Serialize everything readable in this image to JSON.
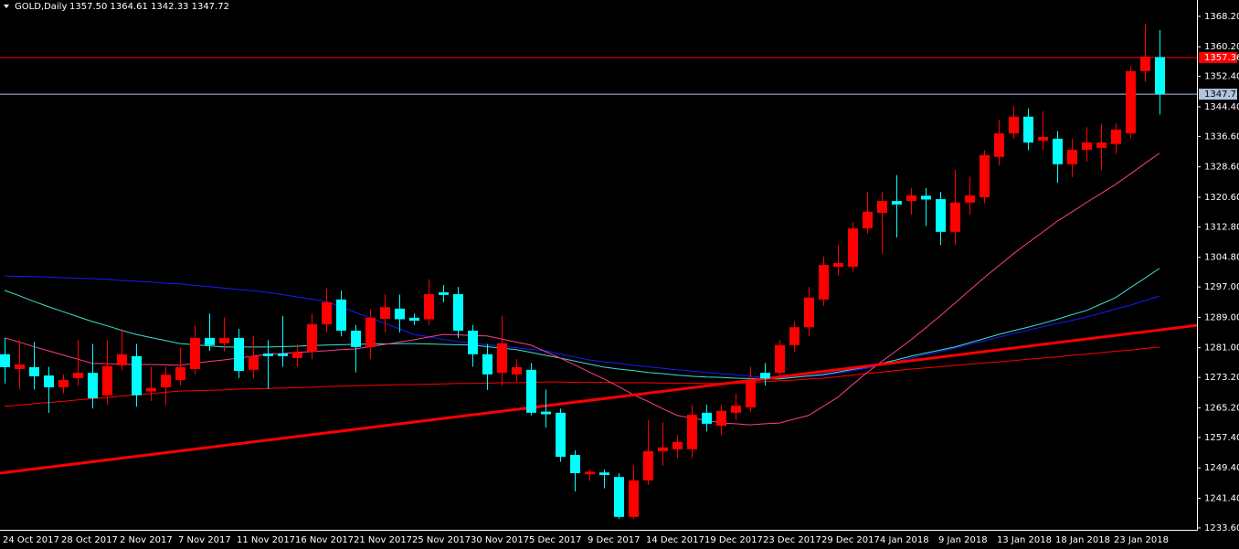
{
  "chart_data": {
    "type": "candlestick",
    "title": "GOLD,Daily",
    "subtitle": "1357.50 1364.61 1342.33 1347.72",
    "categories": [
      "24 Oct 2017",
      null,
      null,
      null,
      "28 Oct 2017",
      null,
      null,
      null,
      "2 Nov 2017",
      null,
      null,
      null,
      "7 Nov 2017",
      null,
      null,
      null,
      "11 Nov 2017",
      null,
      null,
      null,
      "16 Nov 2017",
      null,
      null,
      null,
      "21 Nov 2017",
      null,
      null,
      null,
      "25 Nov 2017",
      null,
      null,
      null,
      "30 Nov 2017",
      null,
      null,
      null,
      "5 Dec 2017",
      null,
      null,
      null,
      "9 Dec 2017",
      null,
      null,
      null,
      "14 Dec 2017",
      null,
      null,
      null,
      "19 Dec 2017",
      null,
      null,
      null,
      "23 Dec 2017",
      null,
      null,
      null,
      "29 Dec 2017",
      null,
      null,
      null,
      "4 Jan 2018",
      null,
      null,
      null,
      "9 Jan 2018",
      null,
      null,
      null,
      "13 Jan 2018",
      null,
      null,
      null,
      "18 Jan 2018",
      null,
      null,
      null,
      "23 Jan 2018",
      null,
      null,
      null
    ],
    "open": [
      1279.3,
      1275.4,
      1275.9,
      1273.7,
      1270.6,
      1273.0,
      1274.4,
      1268.5,
      1276.4,
      1278.8,
      1269.5,
      1270.6,
      1272.5,
      1275.4,
      1283.6,
      1282.2,
      1283.6,
      1275.2,
      1279.5,
      1279.5,
      1278.3,
      1280.0,
      1287.2,
      1293.7,
      1285.5,
      1281.2,
      1288.6,
      1291.3,
      1288.9,
      1288.5,
      1295.6,
      1295.1,
      1285.5,
      1279.3,
      1274.4,
      1274.0,
      1275.2,
      1264.2,
      1263.9,
      1252.8,
      1247.7,
      1248.2,
      1247.0,
      1236.5,
      1246.1,
      1253.8,
      1254.3,
      1254.3,
      1263.9,
      1260.5,
      1263.9,
      1265.3,
      1274.4,
      1274.4,
      1281.7,
      1286.4,
      1293.7,
      1302.3,
      1302.3,
      1312.4,
      1316.5,
      1319.6,
      1319.6,
      1321.0,
      1320.1,
      1311.5,
      1319.2,
      1320.6,
      1331.2,
      1337.4,
      1341.8,
      1335.5,
      1336.0,
      1329.3,
      1333.1,
      1333.6,
      1334.6,
      1337.4,
      1353.8,
      1357.5
    ],
    "high": [
      1283.6,
      1283.0,
      1282.6,
      1276.0,
      1274.0,
      1283.0,
      1282.0,
      1283.0,
      1286.0,
      1282.0,
      1276.0,
      1276.0,
      1281.0,
      1286.9,
      1290.0,
      1289.0,
      1286.0,
      1284.0,
      1283.0,
      1289.4,
      1282.0,
      1290.0,
      1296.6,
      1296.0,
      1287.0,
      1291.0,
      1295.1,
      1295.0,
      1290.0,
      1299.0,
      1297.5,
      1297.0,
      1287.0,
      1282.0,
      1289.4,
      1278.0,
      1277.0,
      1270.0,
      1265.0,
      1254.0,
      1249.0,
      1249.0,
      1248.0,
      1250.0,
      1262.0,
      1261.4,
      1258.0,
      1266.0,
      1266.0,
      1266.0,
      1269.0,
      1276.0,
      1277.0,
      1283.0,
      1288.0,
      1297.0,
      1305.0,
      1308.1,
      1314.0,
      1322.0,
      1322.0,
      1326.4,
      1323.0,
      1323.0,
      1322.0,
      1327.8,
      1326.0,
      1333.0,
      1341.0,
      1344.6,
      1344.0,
      1343.2,
      1338.0,
      1336.0,
      1339.0,
      1340.0,
      1340.0,
      1355.0,
      1366.3,
      1364.61
    ],
    "low": [
      1271.6,
      1270.0,
      1270.0,
      1263.9,
      1269.0,
      1271.0,
      1265.0,
      1266.0,
      1275.0,
      1265.5,
      1267.0,
      1266.0,
      1271.0,
      1274.0,
      1280.2,
      1280.0,
      1273.0,
      1273.0,
      1270.1,
      1276.0,
      1276.0,
      1278.0,
      1285.0,
      1284.0,
      1274.5,
      1278.0,
      1285.0,
      1285.0,
      1287.0,
      1287.0,
      1293.0,
      1283.6,
      1276.0,
      1269.9,
      1271.0,
      1272.0,
      1263.2,
      1260.0,
      1251.0,
      1243.2,
      1246.0,
      1244.0,
      1236.0,
      1236.0,
      1245.0,
      1250.0,
      1252.0,
      1252.0,
      1259.0,
      1258.0,
      1262.0,
      1264.0,
      1271.0,
      1273.0,
      1280.0,
      1284.0,
      1292.0,
      1300.0,
      1301.0,
      1311.0,
      1305.7,
      1310.0,
      1316.0,
      1313.0,
      1308.0,
      1308.1,
      1316.0,
      1319.0,
      1329.0,
      1336.0,
      1333.0,
      1333.0,
      1324.4,
      1325.9,
      1330.0,
      1327.8,
      1332.0,
      1336.0,
      1351.0,
      1342.33
    ],
    "close": [
      1275.9,
      1276.6,
      1273.5,
      1270.6,
      1272.5,
      1274.4,
      1267.7,
      1276.2,
      1279.3,
      1268.5,
      1270.4,
      1273.9,
      1275.9,
      1283.6,
      1281.7,
      1283.6,
      1274.9,
      1278.8,
      1278.8,
      1278.8,
      1279.8,
      1287.2,
      1293.0,
      1285.5,
      1281.2,
      1288.9,
      1291.7,
      1288.5,
      1288.1,
      1295.1,
      1294.9,
      1285.5,
      1279.3,
      1274.0,
      1282.2,
      1275.9,
      1263.9,
      1263.5,
      1252.3,
      1248.0,
      1248.4,
      1247.5,
      1236.5,
      1246.1,
      1253.8,
      1254.8,
      1256.2,
      1263.4,
      1261.0,
      1264.4,
      1265.8,
      1272.5,
      1272.9,
      1281.7,
      1286.4,
      1294.2,
      1302.8,
      1303.3,
      1312.4,
      1316.8,
      1319.6,
      1318.7,
      1321.1,
      1320.0,
      1311.5,
      1319.2,
      1321.1,
      1331.7,
      1337.4,
      1341.8,
      1335.0,
      1336.5,
      1329.3,
      1333.1,
      1335.0,
      1335.0,
      1338.4,
      1353.8,
      1357.6,
      1347.72
    ],
    "up_color": "#ff0000",
    "down_color": "#00ffff",
    "series": [
      {
        "color": "#ff0000",
        "values": [
          1265.6,
          1265.9,
          1266.3,
          1266.6,
          1266.9,
          1267.3,
          1267.6,
          1267.9,
          1268.3,
          1268.6,
          1268.9,
          1269.3,
          1269.6,
          1269.7,
          1269.8,
          1269.9,
          1270.1,
          1270.2,
          1270.3,
          1270.4,
          1270.5,
          1270.6,
          1270.8,
          1270.9,
          1271.0,
          1271.1,
          1271.2,
          1271.3,
          1271.3,
          1271.4,
          1271.5,
          1271.6,
          1271.6,
          1271.7,
          1271.8,
          1271.8,
          1271.9,
          1272.0,
          1272.0,
          1271.9,
          1271.9,
          1271.9,
          1271.8,
          1271.8,
          1271.8,
          1271.7,
          1271.7,
          1271.7,
          1271.6,
          1271.6,
          1271.6,
          1271.8,
          1272.1,
          1272.3,
          1272.5,
          1272.8,
          1273.0,
          1273.4,
          1273.8,
          1274.2,
          1274.6,
          1275.0,
          1275.4,
          1275.7,
          1276.0,
          1276.4,
          1276.7,
          1277.0,
          1277.3,
          1277.6,
          1278.0,
          1278.3,
          1278.6,
          1279.0,
          1279.3,
          1279.7,
          1280.1,
          1280.4,
          1280.8,
          1281.2
        ]
      },
      {
        "color": "#1a1aff",
        "values": [
          1299.9,
          1299.8,
          1299.7,
          1299.6,
          1299.4,
          1299.3,
          1299.2,
          1299.0,
          1298.7,
          1298.5,
          1298.3,
          1298.0,
          1297.8,
          1297.4,
          1297.1,
          1296.7,
          1296.3,
          1296.0,
          1295.6,
          1295.0,
          1294.4,
          1293.8,
          1293.2,
          1291.8,
          1290.3,
          1288.9,
          1287.4,
          1286.0,
          1284.5,
          1283.9,
          1283.2,
          1282.6,
          1282.2,
          1281.8,
          1281.4,
          1281.0,
          1280.6,
          1280.2,
          1279.4,
          1278.6,
          1277.8,
          1277.3,
          1276.9,
          1276.4,
          1276.0,
          1275.6,
          1275.2,
          1274.9,
          1274.5,
          1274.2,
          1273.9,
          1273.5,
          1273.2,
          1273.0,
          1273.2,
          1273.5,
          1273.7,
          1274.3,
          1275.0,
          1275.6,
          1276.5,
          1277.4,
          1278.3,
          1279.2,
          1280.0,
          1280.9,
          1281.9,
          1282.8,
          1283.8,
          1284.7,
          1285.6,
          1286.5,
          1287.4,
          1288.2,
          1289.1,
          1290.1,
          1291.2,
          1292.2,
          1293.4,
          1294.6
        ]
      },
      {
        "color": "#40e0d0",
        "values": [
          1296.1,
          1294.7,
          1293.2,
          1291.8,
          1290.5,
          1289.2,
          1287.9,
          1286.8,
          1285.6,
          1284.5,
          1283.7,
          1282.9,
          1282.1,
          1281.8,
          1281.5,
          1281.2,
          1281.2,
          1281.2,
          1281.2,
          1281.3,
          1281.4,
          1281.6,
          1281.7,
          1281.8,
          1281.9,
          1282.0,
          1282.0,
          1282.1,
          1282.1,
          1282.0,
          1281.9,
          1281.8,
          1281.7,
          1281.3,
          1280.9,
          1280.5,
          1279.8,
          1279.0,
          1278.3,
          1277.5,
          1276.7,
          1275.9,
          1275.4,
          1275.0,
          1274.5,
          1274.2,
          1273.8,
          1273.5,
          1273.3,
          1273.2,
          1273.0,
          1272.9,
          1272.9,
          1272.8,
          1273.2,
          1273.6,
          1274.0,
          1274.6,
          1275.3,
          1275.9,
          1276.9,
          1277.8,
          1278.8,
          1279.6,
          1280.4,
          1281.2,
          1282.3,
          1283.4,
          1284.5,
          1285.5,
          1286.4,
          1287.4,
          1288.5,
          1289.7,
          1290.8,
          1292.5,
          1294.2,
          1296.8,
          1299.3,
          1301.9
        ]
      },
      {
        "color": "#ff3c8c",
        "values": [
          1283.6,
          1282.5,
          1281.3,
          1280.2,
          1279.1,
          1278.0,
          1276.9,
          1276.8,
          1276.7,
          1276.6,
          1276.6,
          1276.5,
          1276.4,
          1276.9,
          1277.4,
          1277.8,
          1278.3,
          1278.8,
          1279.3,
          1279.5,
          1279.8,
          1280.0,
          1280.2,
          1280.5,
          1280.7,
          1281.3,
          1281.9,
          1282.5,
          1283.1,
          1283.8,
          1284.5,
          1284.4,
          1284.2,
          1284.1,
          1283.3,
          1282.5,
          1281.7,
          1280.0,
          1278.3,
          1276.5,
          1274.6,
          1272.8,
          1270.8,
          1268.7,
          1266.9,
          1265.0,
          1263.2,
          1262.5,
          1261.9,
          1261.2,
          1261.0,
          1260.7,
          1261.0,
          1261.2,
          1262.2,
          1263.2,
          1265.6,
          1268.0,
          1271.3,
          1274.5,
          1277.4,
          1280.2,
          1283.1,
          1286.2,
          1289.4,
          1292.7,
          1296.1,
          1299.4,
          1302.6,
          1305.7,
          1308.6,
          1311.4,
          1314.3,
          1316.7,
          1319.2,
          1321.6,
          1324.0,
          1326.7,
          1329.5,
          1332.2
        ]
      }
    ],
    "trendline": {
      "color": "#ff0000",
      "values": [
        1248.0,
        1286.9
      ]
    },
    "hlines": [
      {
        "value": 1357.36,
        "label": "1357.36",
        "color": "#ff0000"
      },
      {
        "value": 1347.72,
        "label": "1347.72",
        "color": "#b0c4de"
      }
    ],
    "ylim": [
      1233.1,
      1372.5
    ],
    "yticks": [
      {
        "value": 1233.6,
        "label": "1233.60"
      },
      {
        "value": 1241.4,
        "label": "1241.40"
      },
      {
        "value": 1249.4,
        "label": "1249.40"
      },
      {
        "value": 1257.4,
        "label": "1257.40"
      },
      {
        "value": 1265.2,
        "label": "1265.20"
      },
      {
        "value": 1273.2,
        "label": "1273.20"
      },
      {
        "value": 1281.0,
        "label": "1281.00"
      },
      {
        "value": 1289.0,
        "label": "1289.00"
      },
      {
        "value": 1297.0,
        "label": "1297.00"
      },
      {
        "value": 1304.8,
        "label": "1304.80"
      },
      {
        "value": 1312.8,
        "label": "1312.80"
      },
      {
        "value": 1320.6,
        "label": "1320.60"
      },
      {
        "value": 1328.6,
        "label": "1328.60"
      },
      {
        "value": 1336.6,
        "label": "1336.60"
      },
      {
        "value": 1344.4,
        "label": "1344.40"
      },
      {
        "value": 1352.4,
        "label": "1352.40"
      },
      {
        "value": 1360.2,
        "label": "1360.20"
      },
      {
        "value": 1368.2,
        "label": "1368.20"
      }
    ],
    "grid": false
  }
}
